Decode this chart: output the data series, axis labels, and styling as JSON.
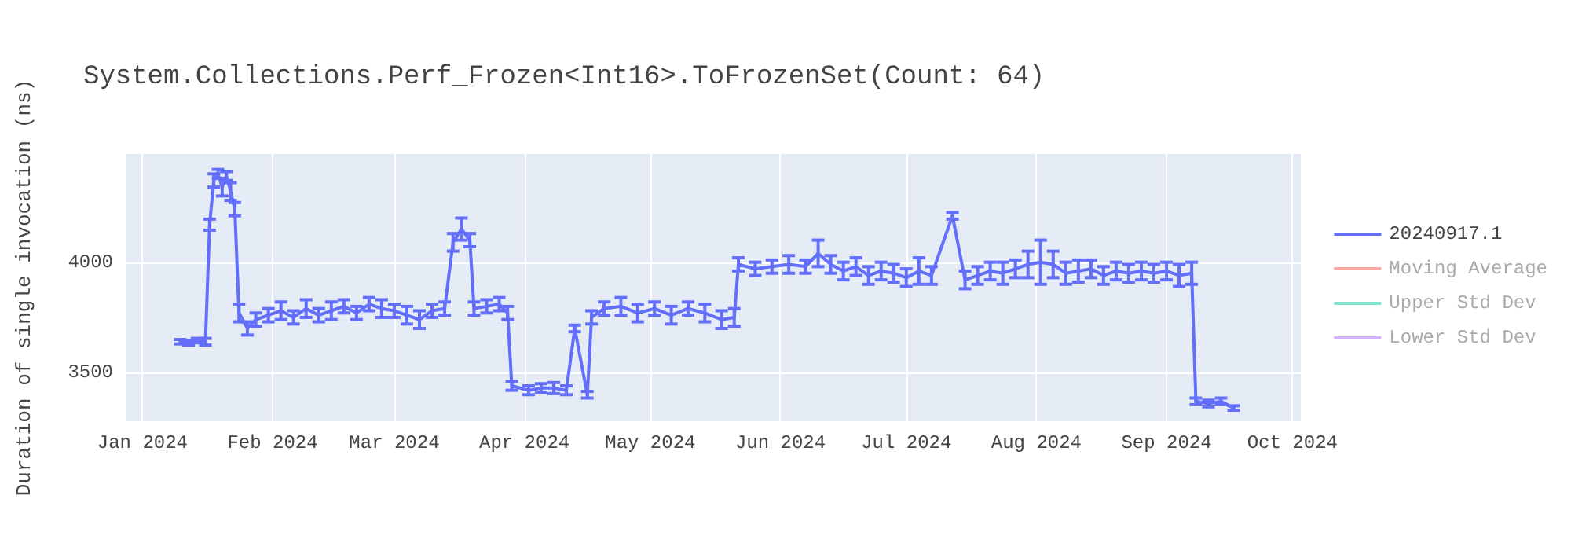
{
  "chart_data": {
    "type": "line",
    "title": "System.Collections.Perf_Frozen<Int16>.ToFrozenSet(Count: 64)",
    "ylabel": "Duration of single invocation (ns)",
    "x": [
      "2024-01-10",
      "2024-01-12",
      "2024-01-14",
      "2024-01-16",
      "2024-01-17",
      "2024-01-18",
      "2024-01-19",
      "2024-01-20",
      "2024-01-21",
      "2024-01-22",
      "2024-01-23",
      "2024-01-24",
      "2024-01-26",
      "2024-01-28",
      "2024-01-31",
      "2024-02-03",
      "2024-02-06",
      "2024-02-09",
      "2024-02-12",
      "2024-02-15",
      "2024-02-18",
      "2024-02-21",
      "2024-02-24",
      "2024-02-27",
      "2024-03-01",
      "2024-03-04",
      "2024-03-07",
      "2024-03-10",
      "2024-03-13",
      "2024-03-15",
      "2024-03-17",
      "2024-03-19",
      "2024-03-20",
      "2024-03-23",
      "2024-03-26",
      "2024-03-28",
      "2024-03-29",
      "2024-04-02",
      "2024-04-05",
      "2024-04-08",
      "2024-04-11",
      "2024-04-13",
      "2024-04-16",
      "2024-04-17",
      "2024-04-20",
      "2024-04-24",
      "2024-04-28",
      "2024-05-02",
      "2024-05-06",
      "2024-05-10",
      "2024-05-14",
      "2024-05-18",
      "2024-05-21",
      "2024-05-22",
      "2024-05-26",
      "2024-05-30",
      "2024-06-03",
      "2024-06-07",
      "2024-06-10",
      "2024-06-13",
      "2024-06-16",
      "2024-06-19",
      "2024-06-22",
      "2024-06-25",
      "2024-06-28",
      "2024-07-01",
      "2024-07-04",
      "2024-07-07",
      "2024-07-12",
      "2024-07-15",
      "2024-07-18",
      "2024-07-21",
      "2024-07-24",
      "2024-07-27",
      "2024-07-30",
      "2024-08-02",
      "2024-08-05",
      "2024-08-08",
      "2024-08-11",
      "2024-08-14",
      "2024-08-17",
      "2024-08-20",
      "2024-08-23",
      "2024-08-26",
      "2024-08-29",
      "2024-09-01",
      "2024-09-04",
      "2024-09-07",
      "2024-09-08",
      "2024-09-11",
      "2024-09-14",
      "2024-09-17"
    ],
    "series": [
      {
        "name": "20240917.1",
        "color": "#636efa",
        "values": [
          3640,
          3635,
          3645,
          3640,
          4170,
          4370,
          4400,
          4340,
          4390,
          4320,
          4240,
          3770,
          3700,
          3740,
          3760,
          3780,
          3750,
          3790,
          3760,
          3780,
          3800,
          3770,
          3810,
          3790,
          3780,
          3760,
          3740,
          3780,
          3790,
          4090,
          4150,
          4100,
          3790,
          3800,
          3810,
          3770,
          3440,
          3420,
          3430,
          3430,
          3420,
          3700,
          3400,
          3750,
          3790,
          3800,
          3770,
          3790,
          3760,
          3790,
          3770,
          3740,
          3750,
          3990,
          3970,
          3980,
          3990,
          3980,
          4040,
          3990,
          3960,
          3980,
          3940,
          3960,
          3950,
          3930,
          3960,
          3940,
          4210,
          3920,
          3940,
          3960,
          3950,
          3970,
          3990,
          4000,
          3990,
          3950,
          3960,
          3970,
          3940,
          3960,
          3950,
          3960,
          3950,
          3960,
          3940,
          3950,
          3370,
          3360,
          3370,
          3340
        ],
        "errors": [
          10,
          10,
          10,
          15,
          25,
          30,
          20,
          40,
          20,
          40,
          30,
          40,
          30,
          30,
          30,
          40,
          30,
          40,
          30,
          40,
          30,
          30,
          30,
          40,
          30,
          40,
          40,
          30,
          30,
          40,
          50,
          30,
          30,
          30,
          30,
          30,
          20,
          20,
          20,
          25,
          20,
          15,
          15,
          30,
          30,
          40,
          40,
          30,
          40,
          30,
          40,
          40,
          40,
          30,
          30,
          30,
          40,
          30,
          60,
          40,
          40,
          40,
          40,
          40,
          40,
          40,
          60,
          40,
          15,
          40,
          40,
          40,
          50,
          40,
          60,
          100,
          60,
          50,
          50,
          40,
          40,
          40,
          40,
          40,
          40,
          40,
          50,
          50,
          15,
          15,
          15,
          10
        ]
      },
      {
        "name": "Moving Average",
        "color": "#ef553b",
        "values": [
          null,
          null,
          null,
          null,
          null,
          null,
          null,
          null,
          null,
          null,
          null,
          null,
          null,
          null,
          null,
          null,
          null,
          null,
          null,
          null,
          null,
          null,
          null,
          null,
          null,
          null,
          null,
          null,
          null,
          null,
          null,
          null,
          null,
          null,
          null,
          null,
          null,
          null,
          null,
          null,
          null,
          null,
          null,
          null,
          null,
          null,
          null,
          null,
          null,
          null,
          null,
          null,
          null,
          null,
          null,
          null,
          null,
          null,
          null,
          null,
          null,
          null,
          null,
          null,
          null,
          null,
          null,
          null,
          null,
          null,
          null,
          null,
          null,
          null,
          null,
          null,
          null,
          null,
          null,
          null,
          null,
          null,
          null,
          null,
          null,
          null,
          null,
          null,
          null,
          null,
          null,
          null
        ]
      },
      {
        "name": "Upper Std Dev",
        "color": "#00cc96",
        "values": [
          null,
          null,
          null,
          null,
          null,
          null,
          null,
          null,
          null,
          null,
          null,
          null,
          null,
          null,
          null,
          null,
          null,
          null,
          null,
          null,
          null,
          null,
          null,
          null,
          null,
          null,
          null,
          null,
          null,
          null,
          null,
          null,
          null,
          null,
          null,
          null,
          null,
          null,
          null,
          null,
          null,
          null,
          null,
          null,
          null,
          null,
          null,
          null,
          null,
          null,
          null,
          null,
          null,
          null,
          null,
          null,
          null,
          null,
          null,
          null,
          null,
          null,
          null,
          null,
          null,
          null,
          null,
          null,
          null,
          null,
          null,
          null,
          null,
          null,
          null,
          null,
          null,
          null,
          null,
          null,
          null,
          null,
          null,
          null,
          null,
          null,
          null,
          null,
          null,
          null,
          null,
          null
        ]
      },
      {
        "name": "Lower Std Dev",
        "color": "#ab63fa",
        "values": [
          null,
          null,
          null,
          null,
          null,
          null,
          null,
          null,
          null,
          null,
          null,
          null,
          null,
          null,
          null,
          null,
          null,
          null,
          null,
          null,
          null,
          null,
          null,
          null,
          null,
          null,
          null,
          null,
          null,
          null,
          null,
          null,
          null,
          null,
          null,
          null,
          null,
          null,
          null,
          null,
          null,
          null,
          null,
          null,
          null,
          null,
          null,
          null,
          null,
          null,
          null,
          null,
          null,
          null,
          null,
          null,
          null,
          null,
          null,
          null,
          null,
          null,
          null,
          null,
          null,
          null,
          null,
          null,
          null,
          null,
          null,
          null,
          null,
          null,
          null,
          null,
          null,
          null,
          null,
          null,
          null,
          null,
          null,
          null,
          null,
          null,
          null,
          null,
          null,
          null,
          null,
          null
        ]
      }
    ],
    "xlim": [
      "2023-12-28",
      "2024-10-03"
    ],
    "xticks": [
      {
        "value": "2024-01-01",
        "label": "Jan 2024"
      },
      {
        "value": "2024-02-01",
        "label": "Feb 2024"
      },
      {
        "value": "2024-03-01",
        "label": "Mar 2024"
      },
      {
        "value": "2024-04-01",
        "label": "Apr 2024"
      },
      {
        "value": "2024-05-01",
        "label": "May 2024"
      },
      {
        "value": "2024-06-01",
        "label": "Jun 2024"
      },
      {
        "value": "2024-07-01",
        "label": "Jul 2024"
      },
      {
        "value": "2024-08-01",
        "label": "Aug 2024"
      },
      {
        "value": "2024-09-01",
        "label": "Sep 2024"
      },
      {
        "value": "2024-10-01",
        "label": "Oct 2024"
      }
    ],
    "ylim": [
      3280,
      4490
    ],
    "yticks": [
      3500,
      4000
    ],
    "grid": true,
    "legend": "top right",
    "marker": "none",
    "line_style": "solid"
  }
}
